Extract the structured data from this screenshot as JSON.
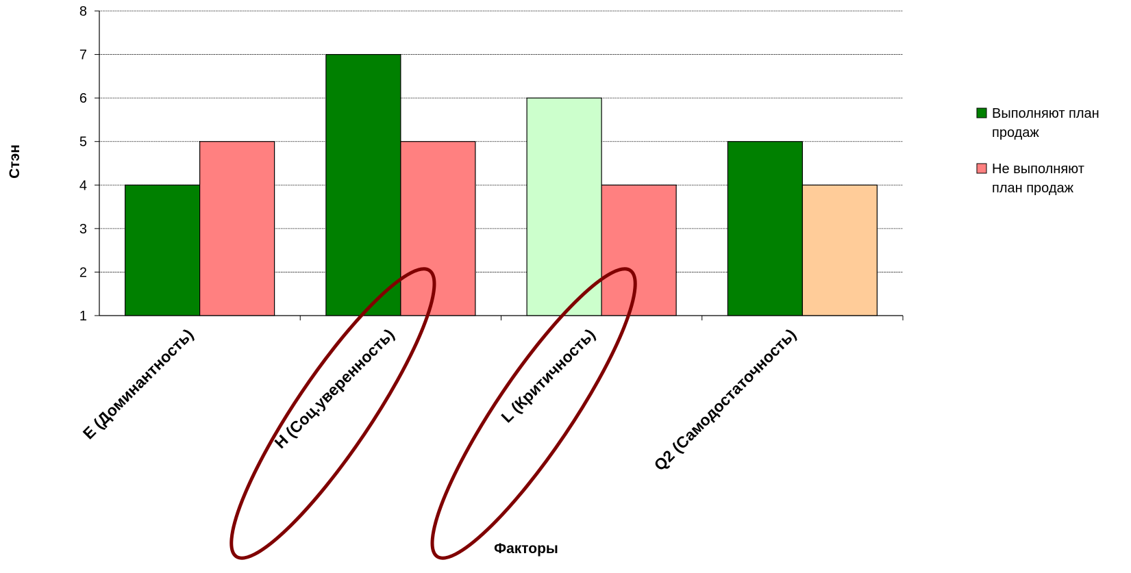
{
  "chart_data": {
    "type": "bar",
    "title": "",
    "xlabel": "Факторы",
    "ylabel": "Стэн",
    "ylim": [
      1,
      8
    ],
    "yticks": [
      1,
      2,
      3,
      4,
      5,
      6,
      7,
      8
    ],
    "grid": true,
    "legend_position": "right",
    "categories": [
      "E (Доминантность)",
      "H (Соц.уверенность)",
      "L (Критичность)",
      "Q2 (Самодостаточность)"
    ],
    "series": [
      {
        "name": "Выполняют план продаж",
        "legend_lines": [
          "Выполняют план",
          "продаж"
        ],
        "color": "#008000",
        "values": [
          4,
          7,
          6,
          5
        ],
        "bar_colors": [
          "#008000",
          "#008000",
          "#CCFFCC",
          "#008000"
        ]
      },
      {
        "name": "Не выполняют план продаж",
        "legend_lines": [
          "Не выполняют",
          "план продаж"
        ],
        "color": "#FF8080",
        "values": [
          5,
          5,
          4,
          4
        ],
        "bar_colors": [
          "#FF8080",
          "#FF8080",
          "#FF8080",
          "#FFCC99"
        ]
      }
    ],
    "annotations": [
      {
        "type": "ellipse",
        "category": "H (Соц.уверенность)",
        "color": "#800000"
      },
      {
        "type": "ellipse",
        "category": "L (Критичность)",
        "color": "#800000"
      }
    ]
  }
}
